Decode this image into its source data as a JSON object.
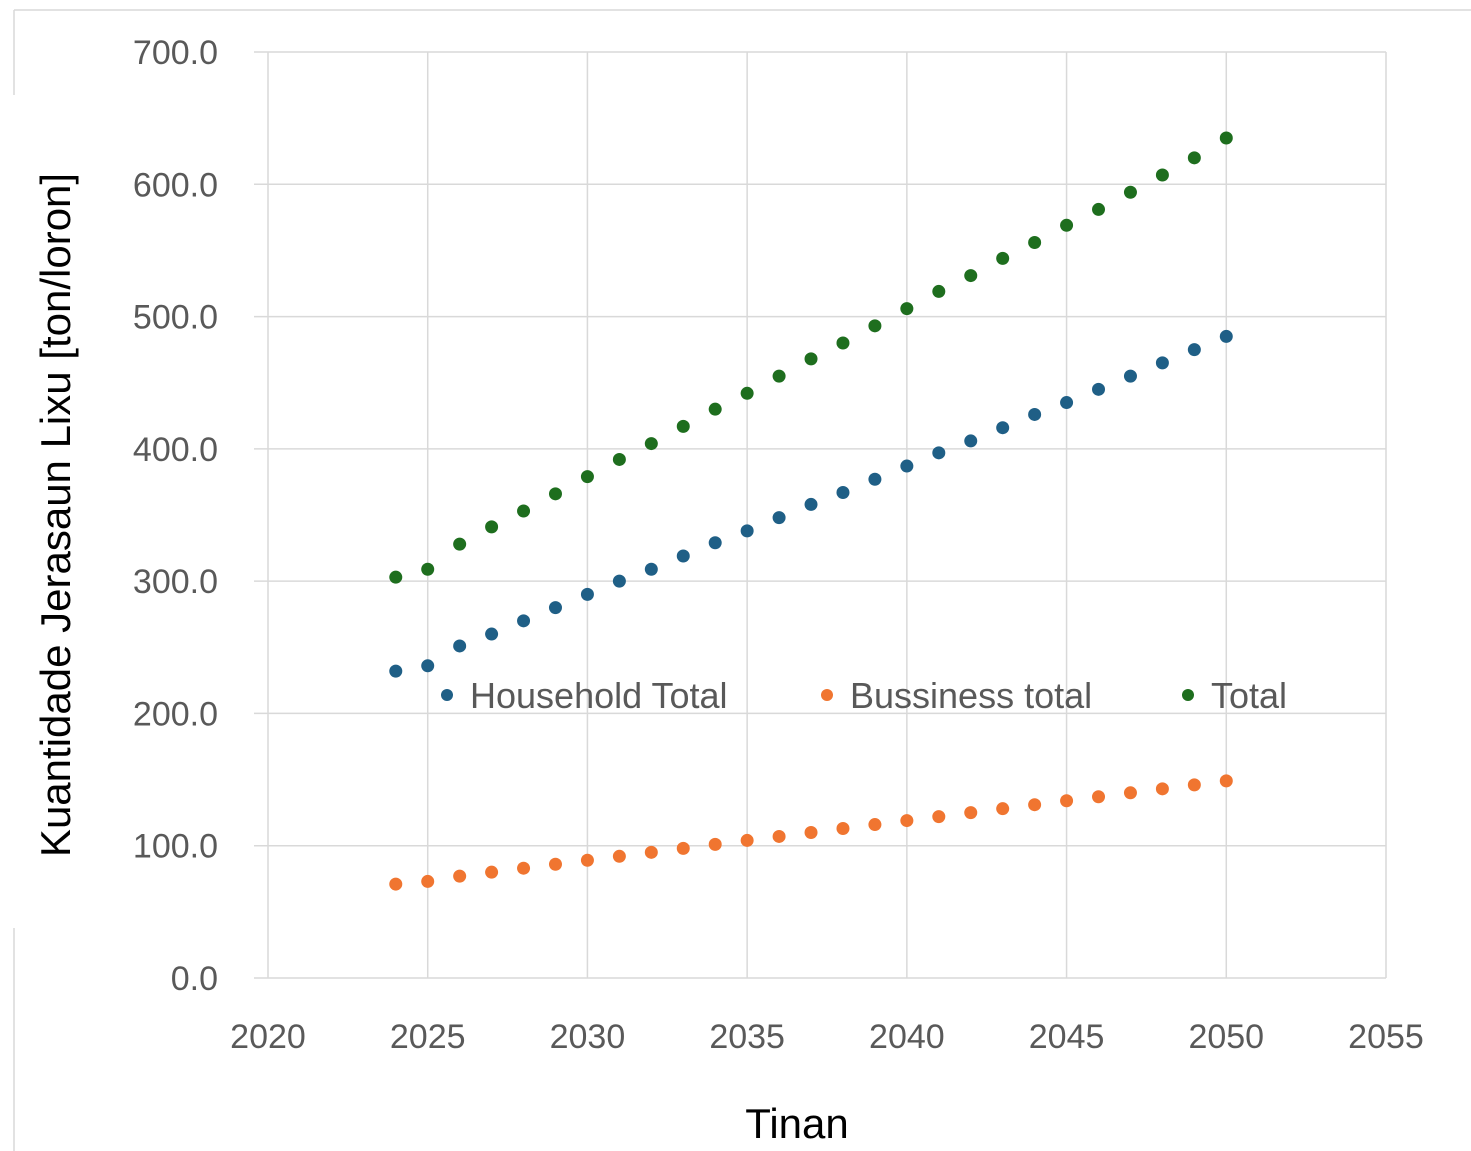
{
  "chart_data": {
    "type": "scatter",
    "title": "",
    "xlabel": "Tinan",
    "ylabel": "Kuantidade Jerasaun Lixu [ton/loron]",
    "xlim": [
      2020,
      2055
    ],
    "ylim": [
      0,
      700
    ],
    "x_ticks": [
      "2020",
      "2025",
      "2030",
      "2035",
      "2040",
      "2045",
      "2050",
      "2055"
    ],
    "y_ticks": [
      "0.0",
      "100.0",
      "200.0",
      "300.0",
      "400.0",
      "500.0",
      "600.0",
      "700.0"
    ],
    "grid": true,
    "legend_position": "inside-middle",
    "x": [
      2024,
      2025,
      2026,
      2027,
      2028,
      2029,
      2030,
      2031,
      2032,
      2033,
      2034,
      2035,
      2036,
      2037,
      2038,
      2039,
      2040,
      2041,
      2042,
      2043,
      2044,
      2045,
      2046,
      2047,
      2048,
      2049,
      2050
    ],
    "series": [
      {
        "name": "Household Total",
        "color": "#1f5f86",
        "values": [
          232,
          236,
          251,
          260,
          270,
          280,
          290,
          300,
          309,
          319,
          329,
          338,
          348,
          358,
          367,
          377,
          387,
          397,
          406,
          416,
          426,
          435,
          445,
          455,
          465,
          475,
          485
        ]
      },
      {
        "name": "Bussiness total",
        "color": "#f07530",
        "values": [
          71,
          73,
          77,
          80,
          83,
          86,
          89,
          92,
          95,
          98,
          101,
          104,
          107,
          110,
          113,
          116,
          119,
          122,
          125,
          128,
          131,
          134,
          137,
          140,
          143,
          146,
          149
        ]
      },
      {
        "name": "Total",
        "color": "#1e6e1e",
        "values": [
          303,
          309,
          328,
          341,
          353,
          366,
          379,
          392,
          404,
          417,
          430,
          442,
          455,
          468,
          480,
          493,
          506,
          519,
          531,
          544,
          556,
          569,
          581,
          594,
          607,
          620,
          635
        ]
      }
    ]
  }
}
